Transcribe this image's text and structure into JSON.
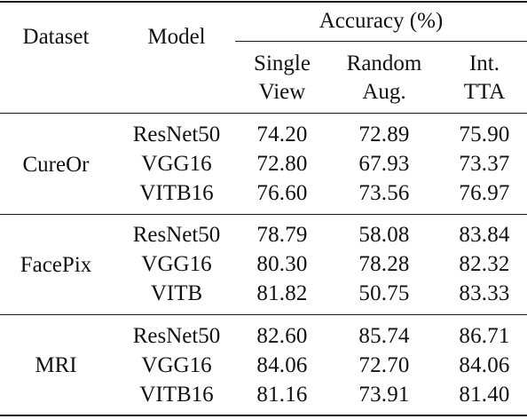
{
  "headers": {
    "dataset": "Dataset",
    "model": "Model",
    "accuracy": "Accuracy (%)",
    "single_line1": "Single",
    "single_line2": "View",
    "random_line1": "Random",
    "random_line2": "Aug.",
    "tta_line1": "Int.",
    "tta_line2": "TTA"
  },
  "groups": [
    {
      "dataset": "CureOr",
      "rows": [
        {
          "model": "ResNet50",
          "single": "74.20",
          "random": "72.89",
          "tta": "75.90"
        },
        {
          "model": "VGG16",
          "single": "72.80",
          "random": "67.93",
          "tta": "73.37"
        },
        {
          "model": "VITB16",
          "single": "76.60",
          "random": "73.56",
          "tta": "76.97"
        }
      ]
    },
    {
      "dataset": "FacePix",
      "rows": [
        {
          "model": "ResNet50",
          "single": "78.79",
          "random": "58.08",
          "tta": "83.84"
        },
        {
          "model": "VGG16",
          "single": "80.30",
          "random": "78.28",
          "tta": "82.32"
        },
        {
          "model": "VITB",
          "single": "81.82",
          "random": "50.75",
          "tta": "83.33"
        }
      ]
    },
    {
      "dataset": "MRI",
      "rows": [
        {
          "model": "ResNet50",
          "single": "82.60",
          "random": "85.74",
          "tta": "86.71"
        },
        {
          "model": "VGG16",
          "single": "84.06",
          "random": "72.70",
          "tta": "84.06"
        },
        {
          "model": "VITB16",
          "single": "81.16",
          "random": "73.91",
          "tta": "81.40"
        }
      ]
    }
  ]
}
